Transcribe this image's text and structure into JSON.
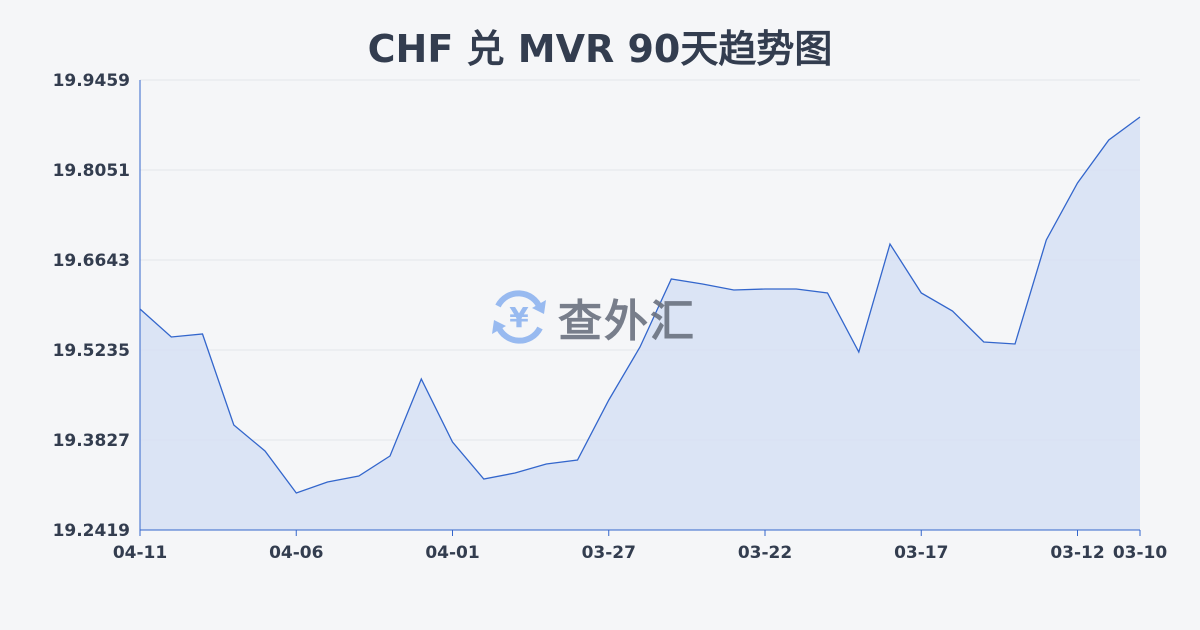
{
  "chart_data": {
    "type": "area",
    "title": "CHF 兑 MVR 90天趋势图",
    "xlabel": "",
    "ylabel": "",
    "ylim": [
      19.2419,
      19.9459
    ],
    "y_ticks": [
      "19.9459",
      "19.8051",
      "19.6643",
      "19.5235",
      "19.3827",
      "19.2419"
    ],
    "x_ticks": [
      "04-11",
      "04-06",
      "04-01",
      "03-27",
      "03-22",
      "03-17",
      "03-12",
      "03-10"
    ],
    "grid": true,
    "line_color": "#3366cc",
    "fill_color": "#d6e0f5",
    "x": [
      "04-11",
      "04-10",
      "04-09",
      "04-08",
      "04-07",
      "04-06",
      "04-05",
      "04-04",
      "04-03",
      "04-02",
      "04-01",
      "03-31",
      "03-30",
      "03-29",
      "03-28",
      "03-27",
      "03-26",
      "03-25",
      "03-24",
      "03-23",
      "03-22",
      "03-21",
      "03-20",
      "03-19",
      "03-18",
      "03-17",
      "03-16",
      "03-15",
      "03-14",
      "03-13",
      "03-12",
      "03-11",
      "03-10"
    ],
    "values": [
      19.5876,
      19.5438,
      19.5485,
      19.4062,
      19.3655,
      19.2998,
      19.317,
      19.3264,
      19.3577,
      19.4781,
      19.3796,
      19.3217,
      19.3311,
      19.3452,
      19.3514,
      19.4453,
      19.5282,
      19.6346,
      19.6268,
      19.6174,
      19.6189,
      19.6189,
      19.6127,
      19.5204,
      19.6893,
      19.6127,
      19.5845,
      19.536,
      19.5329,
      19.6956,
      19.7848,
      19.852,
      19.888
    ]
  },
  "watermark": {
    "text": "查外汇",
    "icon": "yuan-exchange-icon"
  }
}
